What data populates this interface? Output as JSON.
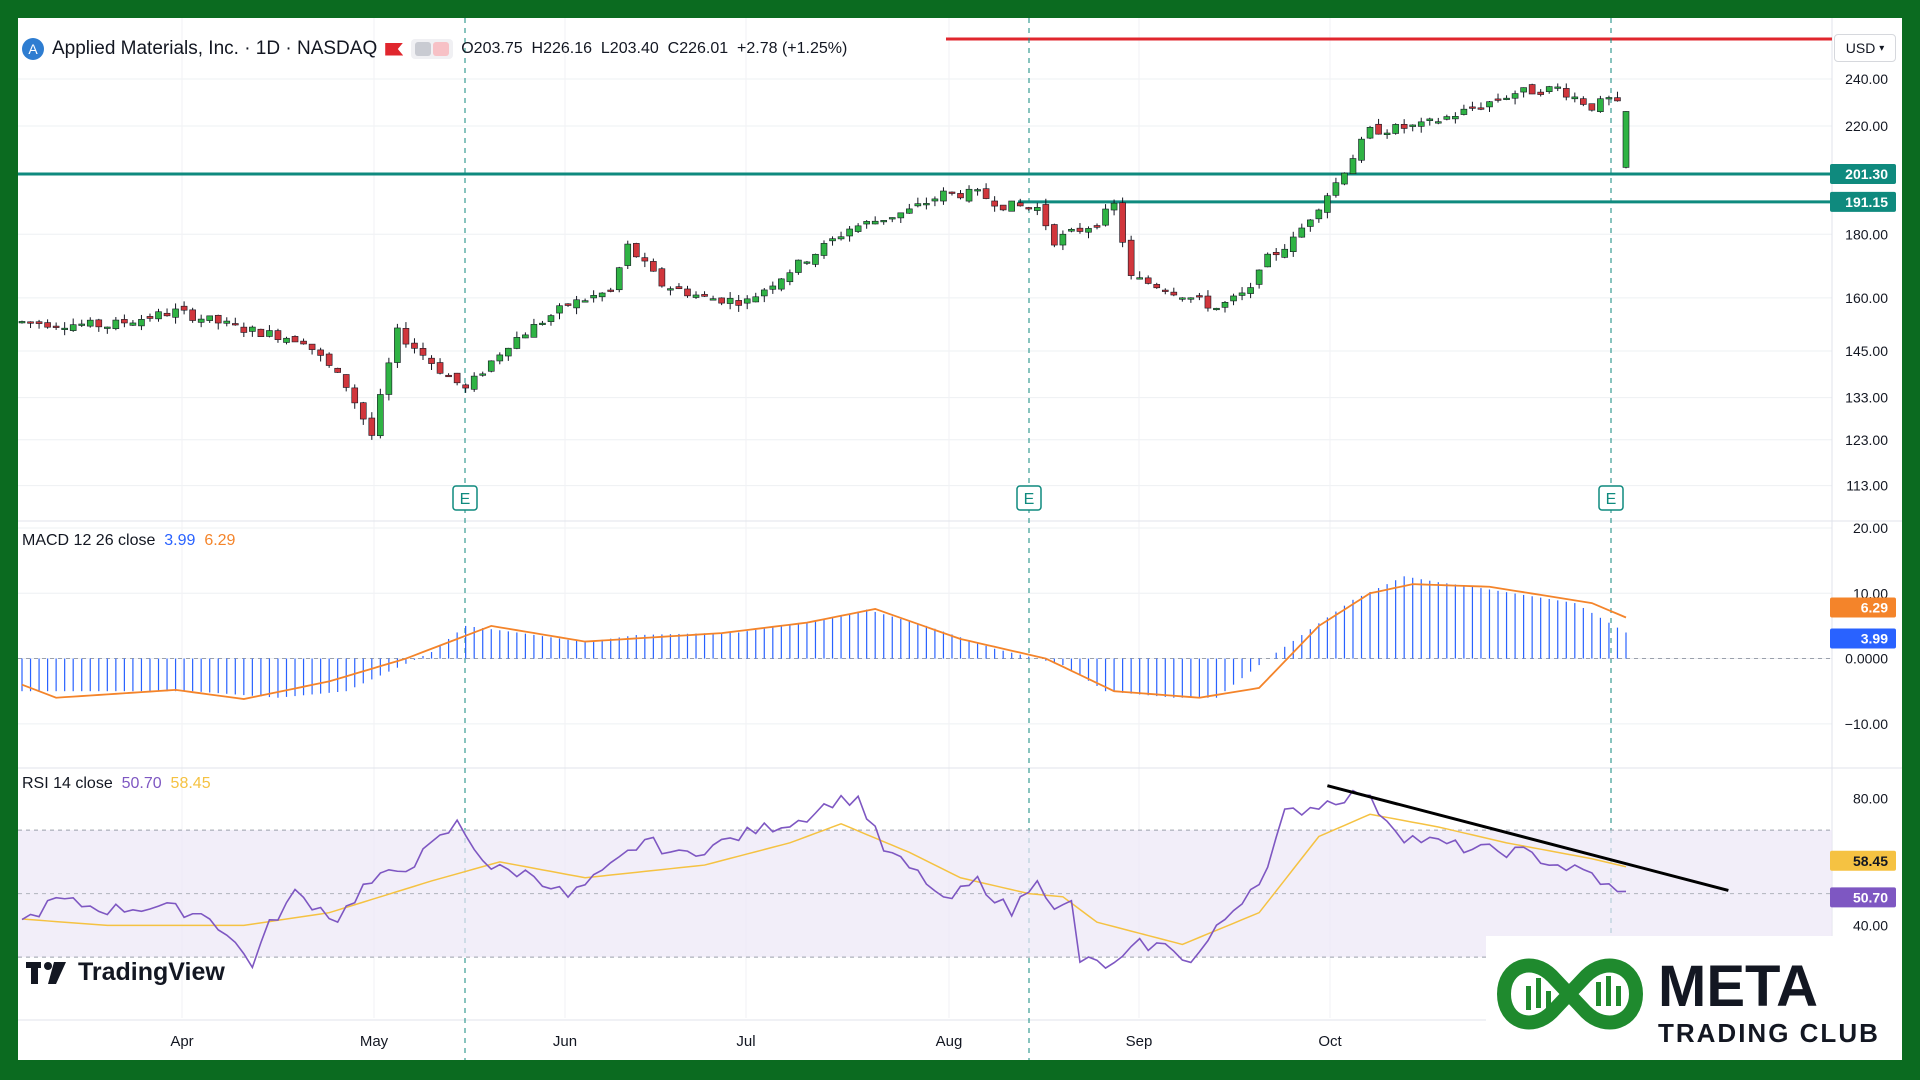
{
  "header": {
    "symbol_icon": "applied-materials-logo-icon",
    "title": "Applied Materials, Inc. · 1D · NASDAQ",
    "ohlc": {
      "open_label": "O",
      "open": "203.75",
      "high_label": "H",
      "high": "226.16",
      "low_label": "L",
      "low": "203.40",
      "close_label": "C",
      "close": "226.01",
      "change": "+2.78 (+1.25%)"
    },
    "currency": "USD"
  },
  "colors": {
    "up": "#26a69a",
    "up_body": "#2fb344",
    "down": "#d1363c",
    "level_line": "#0f8a7e",
    "resistance": "#e0262d",
    "macd": "#2962ff",
    "signal": "#f4842a",
    "rsi": "#7e57c2",
    "rsi_ma": "#f5c242",
    "frame": "#0b6b20"
  },
  "price_axis": {
    "ticks": [
      "240.00",
      "220.00",
      "180.00",
      "160.00",
      "145.00",
      "133.00",
      "123.00",
      "113.00"
    ]
  },
  "levels": [
    {
      "label": "201.30",
      "value": 201.3
    },
    {
      "label": "191.15",
      "value": 191.15
    }
  ],
  "earnings_markers": [
    "E",
    "E",
    "E"
  ],
  "macd_panel": {
    "label": "MACD 12 26 close",
    "macd_value": "3.99",
    "signal_value": "6.29",
    "ticks": [
      "20.00",
      "10.00",
      "0.0000",
      "−10.00"
    ]
  },
  "rsi_panel": {
    "label": "RSI 14 close",
    "rsi_value": "50.70",
    "ma_value": "58.45",
    "ticks": [
      "80.00",
      "40.00"
    ]
  },
  "time_axis": {
    "labels": [
      "Apr",
      "May",
      "Jun",
      "Jul",
      "Aug",
      "Sep",
      "Oct"
    ]
  },
  "branding": {
    "tradingview": "TradingView",
    "meta_word": "META",
    "club_word": "TRADING CLUB"
  },
  "chart_data": [
    {
      "type": "candlestick",
      "title": "Applied Materials, Inc. · 1D · NASDAQ",
      "scale": "log",
      "ylim": [
        108,
        258
      ],
      "y_ticks": [
        240,
        220,
        180,
        160,
        145,
        133,
        123,
        113
      ],
      "horizontal_levels": [
        201.3,
        191.15
      ],
      "anchors": [
        [
          0,
          153
        ],
        [
          10,
          152
        ],
        [
          18,
          156
        ],
        [
          26,
          151
        ],
        [
          33,
          148
        ],
        [
          38,
          136
        ],
        [
          41,
          124
        ],
        [
          44,
          150
        ],
        [
          49,
          140
        ],
        [
          52,
          135
        ],
        [
          57,
          147
        ],
        [
          64,
          158
        ],
        [
          69,
          162
        ],
        [
          71,
          176
        ],
        [
          75,
          164
        ],
        [
          80,
          160
        ],
        [
          85,
          159
        ],
        [
          93,
          174
        ],
        [
          97,
          182
        ],
        [
          104,
          188
        ],
        [
          108,
          194
        ],
        [
          112,
          194
        ],
        [
          115,
          190
        ],
        [
          119,
          189
        ],
        [
          121,
          178
        ],
        [
          126,
          184
        ],
        [
          128,
          190
        ],
        [
          130,
          166
        ],
        [
          134,
          163
        ],
        [
          140,
          157
        ],
        [
          144,
          162
        ],
        [
          145,
          170
        ],
        [
          149,
          178
        ],
        [
          154,
          198
        ],
        [
          158,
          218
        ],
        [
          164,
          220
        ],
        [
          169,
          226
        ],
        [
          175,
          234
        ],
        [
          180,
          236
        ],
        [
          184,
          228
        ],
        [
          186,
          231
        ],
        [
          188,
          226
        ]
      ],
      "last_candle": {
        "open": 203.75,
        "high": 226.16,
        "low": 203.4,
        "close": 226.01
      }
    },
    {
      "type": "histogram+line",
      "title": "MACD 12 26 close",
      "ylim": [
        -16,
        20
      ],
      "y_ticks": [
        20,
        10,
        0,
        -10
      ],
      "macd_anchors": [
        [
          0,
          -5
        ],
        [
          20,
          -5
        ],
        [
          30,
          -6
        ],
        [
          38,
          -5
        ],
        [
          48,
          1
        ],
        [
          52,
          5
        ],
        [
          58,
          4
        ],
        [
          66,
          2.5
        ],
        [
          72,
          3.6
        ],
        [
          84,
          4
        ],
        [
          94,
          6
        ],
        [
          99,
          7.5
        ],
        [
          106,
          5
        ],
        [
          114,
          1.5
        ],
        [
          119,
          0
        ],
        [
          122,
          -1
        ],
        [
          127,
          -5
        ],
        [
          135,
          -6
        ],
        [
          140,
          -6
        ],
        [
          146,
          0
        ],
        [
          156,
          9
        ],
        [
          162,
          12.6
        ],
        [
          166,
          11.7
        ],
        [
          170,
          11
        ],
        [
          182,
          8.5
        ],
        [
          188,
          3.99
        ]
      ],
      "signal_anchors": [
        [
          0,
          -4
        ],
        [
          4,
          -6
        ],
        [
          18,
          -4.8
        ],
        [
          26,
          -6.2
        ],
        [
          36,
          -3.5
        ],
        [
          45,
          0
        ],
        [
          55,
          5
        ],
        [
          66,
          2.6
        ],
        [
          82,
          3.9
        ],
        [
          92,
          5.5
        ],
        [
          100,
          7.6
        ],
        [
          110,
          3
        ],
        [
          120,
          0
        ],
        [
          128,
          -5
        ],
        [
          138,
          -6
        ],
        [
          145,
          -4.5
        ],
        [
          152,
          5
        ],
        [
          158,
          10
        ],
        [
          163,
          11.4
        ],
        [
          172,
          11
        ],
        [
          184,
          8.5
        ],
        [
          188,
          6.29
        ]
      ],
      "last_values": {
        "macd": 3.99,
        "signal": 6.29
      }
    },
    {
      "type": "line",
      "title": "RSI 14 close",
      "ylim": [
        25,
        88
      ],
      "y_ticks": [
        80,
        40
      ],
      "bands": [
        70,
        30
      ],
      "midline": 50,
      "rsi_anchors": [
        [
          0,
          41
        ],
        [
          4,
          48
        ],
        [
          10,
          45
        ],
        [
          16,
          46
        ],
        [
          22,
          43
        ],
        [
          25,
          34
        ],
        [
          27,
          28
        ],
        [
          29,
          40
        ],
        [
          32,
          50
        ],
        [
          37,
          42
        ],
        [
          40,
          52
        ],
        [
          46,
          60
        ],
        [
          51,
          72
        ],
        [
          55,
          58
        ],
        [
          60,
          56
        ],
        [
          64,
          49
        ],
        [
          68,
          56
        ],
        [
          73,
          67
        ],
        [
          77,
          62
        ],
        [
          81,
          65
        ],
        [
          86,
          70
        ],
        [
          91,
          73
        ],
        [
          95,
          79
        ],
        [
          98,
          80
        ],
        [
          101,
          64
        ],
        [
          106,
          54
        ],
        [
          108,
          47
        ],
        [
          112,
          54
        ],
        [
          116,
          44
        ],
        [
          119,
          56
        ],
        [
          121,
          44
        ],
        [
          123,
          47
        ],
        [
          124,
          29
        ],
        [
          128,
          27
        ],
        [
          131,
          34
        ],
        [
          135,
          33
        ],
        [
          137,
          28
        ],
        [
          141,
          42
        ],
        [
          146,
          58
        ],
        [
          148,
          75
        ],
        [
          152,
          78
        ],
        [
          157,
          82
        ],
        [
          162,
          68
        ],
        [
          166,
          66
        ],
        [
          170,
          64
        ],
        [
          176,
          63
        ],
        [
          180,
          59
        ],
        [
          184,
          56
        ],
        [
          187,
          50
        ],
        [
          188,
          50.7
        ]
      ],
      "ma_anchors": [
        [
          0,
          42
        ],
        [
          10,
          40
        ],
        [
          26,
          40
        ],
        [
          36,
          44
        ],
        [
          48,
          54
        ],
        [
          56,
          60
        ],
        [
          66,
          55
        ],
        [
          80,
          59
        ],
        [
          90,
          66
        ],
        [
          96,
          72
        ],
        [
          104,
          63
        ],
        [
          110,
          55
        ],
        [
          118,
          50
        ],
        [
          122,
          49
        ],
        [
          126,
          41
        ],
        [
          136,
          34
        ],
        [
          145,
          44
        ],
        [
          152,
          68
        ],
        [
          158,
          75
        ],
        [
          166,
          71
        ],
        [
          174,
          66
        ],
        [
          184,
          61
        ],
        [
          188,
          58.45
        ]
      ],
      "trendline": [
        [
          153,
          84
        ],
        [
          200,
          51
        ]
      ],
      "last_values": {
        "rsi": 50.7,
        "ma": 58.45
      }
    }
  ]
}
